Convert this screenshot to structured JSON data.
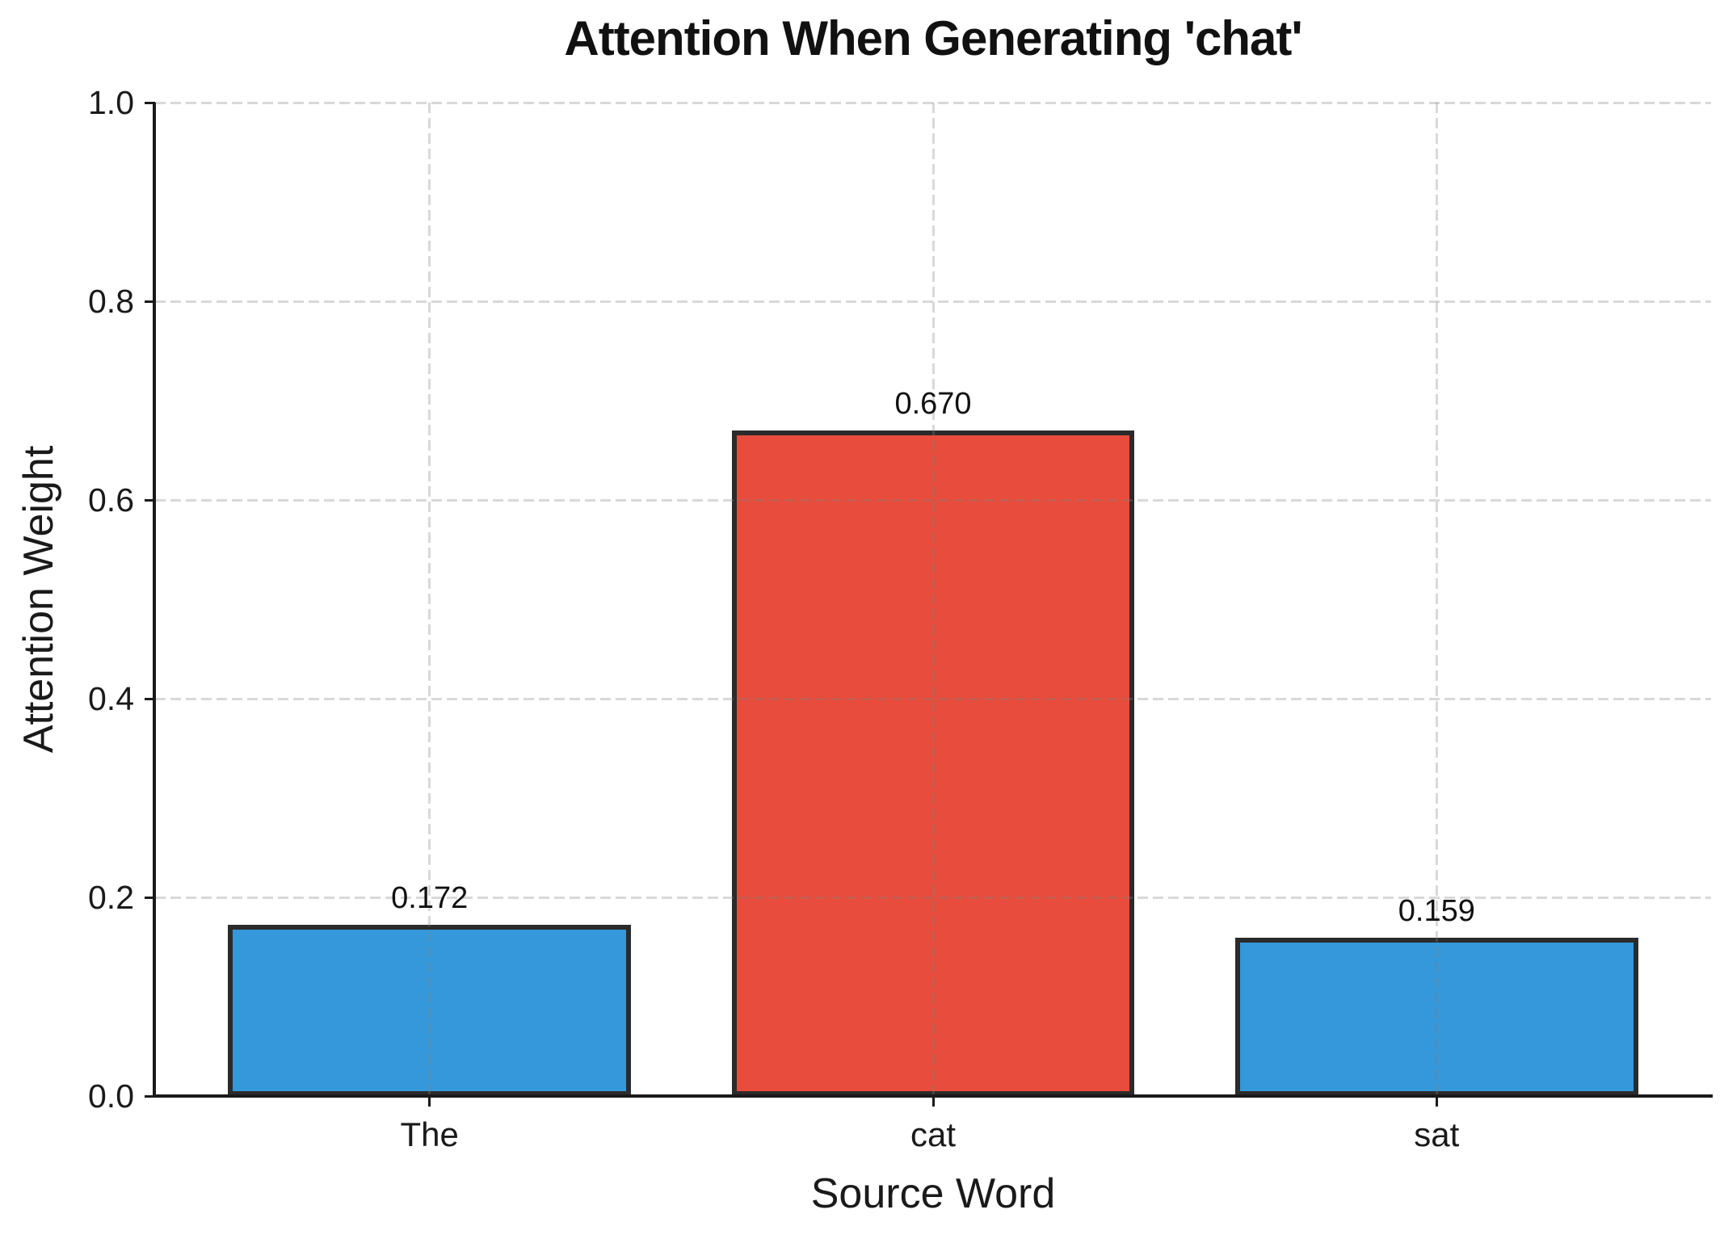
{
  "chart_data": {
    "type": "bar",
    "title": "Attention When Generating 'chat'",
    "xlabel": "Source Word",
    "ylabel": "Attention Weight",
    "categories": [
      "The",
      "cat",
      "sat"
    ],
    "values": [
      0.172,
      0.67,
      0.159
    ],
    "value_labels": [
      "0.172",
      "0.670",
      "0.159"
    ],
    "bar_colors": [
      "#3498db",
      "#e74c3c",
      "#3498db"
    ],
    "bar_edge_color": "#2b2b2b",
    "highlighted_category": "cat",
    "ylim": [
      0.0,
      1.0
    ],
    "yticks": [
      0.0,
      0.2,
      0.4,
      0.6,
      0.8,
      1.0
    ],
    "ytick_labels": [
      "0.0",
      "0.2",
      "0.4",
      "0.6",
      "0.8",
      "1.0"
    ],
    "grid": "dashed",
    "grid_color": "rgba(128,128,128,0.3)",
    "legend_position": "none",
    "background_color": "#ffffff",
    "spine_color": "#1a1a1a"
  }
}
